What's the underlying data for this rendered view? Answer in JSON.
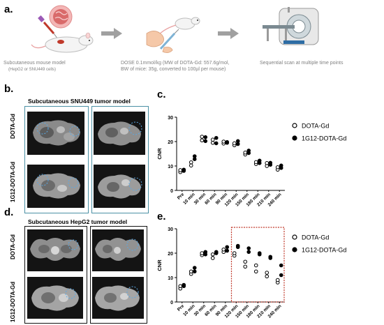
{
  "panels": {
    "a": {
      "letter": "a.",
      "caption1": "Subcutaneous mouse model",
      "caption1_sub": "(HepG2 or SNU449 cells)",
      "caption2_line1": "DOSE 0.1mmol/kg (MW of DOTA-Gd: 557.6g/mol,",
      "caption2_line2": "BW of mice: 35g, converted to 100µl per mouse)",
      "caption3": "Sequential scan at multiple time points"
    },
    "b": {
      "letter": "b.",
      "title": "Subcutaneous SNU449 tumor model",
      "row1": "DOTA-Gd",
      "row2": "1G12-DOTA-Gd"
    },
    "c": {
      "letter": "c."
    },
    "d": {
      "letter": "d.",
      "title": "Subcutaneous HepG2 tumor model",
      "row1": "DOTA-Gd",
      "row2": "1G12-DOTA-Gd"
    },
    "e": {
      "letter": "e."
    }
  },
  "colors": {
    "blue_frame": "#4a90a4",
    "arrow": "#a0a0a0",
    "highlight_box": "#c0392b",
    "tumor_circle": "#5aa9e6"
  },
  "chart_data": [
    {
      "type": "scatter",
      "ylabel": "CNR",
      "ylim": [
        0,
        30
      ],
      "yticks": [
        0,
        10,
        20,
        30
      ],
      "categories": [
        "Pre",
        "10 min",
        "30 min",
        "60 min",
        "90 min",
        "120 min",
        "150 min",
        "180 min",
        "210 min",
        "240 min"
      ],
      "series": [
        {
          "name": "DOTA-Gd",
          "marker": "open-circle",
          "values": [
            [
              7.5,
              8.3
            ],
            [
              10.2,
              11.5
            ],
            [
              20.5,
              22.0
            ],
            [
              19.5,
              20.8
            ],
            [
              19.2,
              20.0
            ],
            [
              18.5,
              19.3
            ],
            [
              14.7,
              15.5
            ],
            [
              10.8,
              11.6
            ],
            [
              10.0,
              11.2
            ],
            [
              8.5,
              9.5
            ]
          ]
        },
        {
          "name": "1G12-DOTA-Gd",
          "marker": "filled-circle",
          "values": [
            [
              8.0,
              8.5
            ],
            [
              12.8,
              14.0
            ],
            [
              20.2,
              21.8
            ],
            [
              19.3,
              21.5
            ],
            [
              19.5,
              19.8
            ],
            [
              19.0,
              20.2
            ],
            [
              15.3,
              16.3
            ],
            [
              11.2,
              12.2
            ],
            [
              10.5,
              11.3
            ],
            [
              9.2,
              10.2
            ]
          ]
        }
      ],
      "legend_position": "right"
    },
    {
      "type": "scatter",
      "ylabel": "CNR",
      "ylim": [
        0,
        30
      ],
      "yticks": [
        0,
        10,
        20,
        30
      ],
      "categories": [
        "Pre",
        "10 min",
        "30 min",
        "60 min",
        "90 min",
        "120 min",
        "150 min",
        "180 min",
        "210 min",
        "240 min"
      ],
      "series": [
        {
          "name": "DOTA-Gd",
          "marker": "open-circle",
          "values": [
            [
              5.5,
              6.5
            ],
            [
              11.5,
              12.5
            ],
            [
              19.2,
              20.0
            ],
            [
              18.0,
              19.5
            ],
            [
              20.5,
              21.5
            ],
            [
              19.0,
              20.0
            ],
            [
              14.5,
              16.5
            ],
            [
              12.5,
              15.0
            ],
            [
              10.5,
              12.0
            ],
            [
              8.0,
              9.0
            ]
          ]
        },
        {
          "name": "1G12-DOTA-Gd",
          "marker": "filled-circle",
          "values": [
            [
              6.5,
              7.0
            ],
            [
              12.5,
              14.0
            ],
            [
              19.5,
              20.5
            ],
            [
              20.0,
              20.5
            ],
            [
              21.0,
              22.5
            ],
            [
              22.5,
              23.0
            ],
            [
              20.5,
              22.0
            ],
            [
              19.5,
              20.0
            ],
            [
              18.0,
              18.5
            ],
            [
              11.0,
              15.0
            ]
          ]
        }
      ],
      "highlight_range": [
        "120 min",
        "240 min"
      ],
      "legend_position": "right"
    }
  ]
}
